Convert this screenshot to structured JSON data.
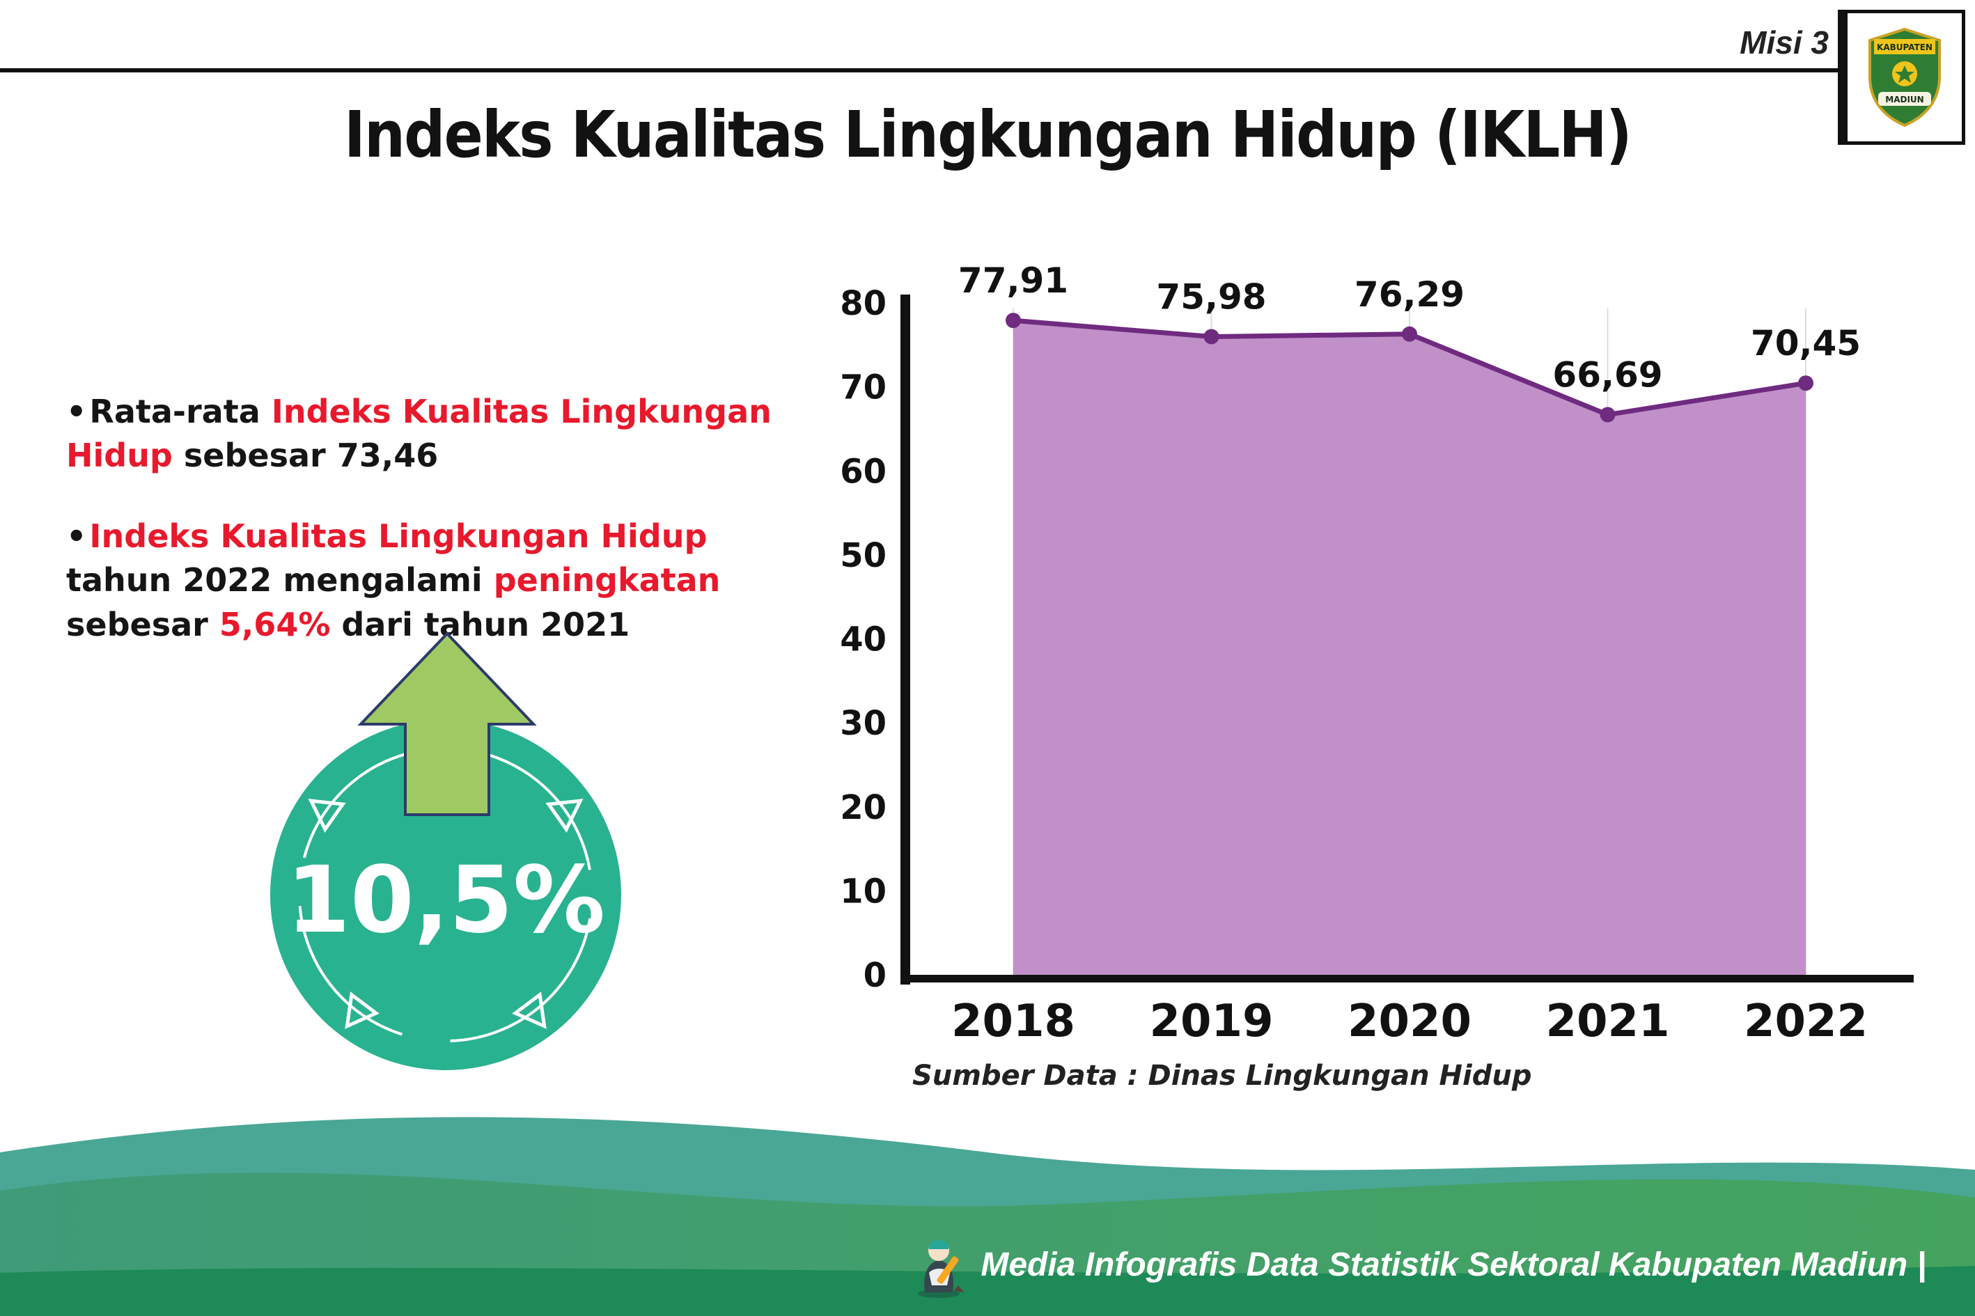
{
  "colors": {
    "accent_red": "#e8192c",
    "teal": "#29b290",
    "arrow_green": "#9fca63",
    "chart_line": "#6f2b80",
    "chart_fill": "#c190c9",
    "footer_teal": "#4aa795",
    "footer_green": "#45a35f",
    "footer_dark": "#1d8a57"
  },
  "header": {
    "misi_label": "Misi 3",
    "title": "Indeks Kualitas Lingkungan Hidup (IKLH)"
  },
  "logo": {
    "top_text": "KABUPATEN",
    "bottom_text": "MADIUN"
  },
  "bullets": [
    {
      "segments": [
        {
          "text": "Rata-rata ",
          "highlight": false
        },
        {
          "text": "Indeks Kualitas Lingkungan Hidup",
          "highlight": true
        },
        {
          "text": " sebesar 73,46",
          "highlight": false
        }
      ]
    },
    {
      "segments": [
        {
          "text": "Indeks Kualitas Lingkungan Hidup",
          "highlight": true
        },
        {
          "text": " tahun 2022 mengalami ",
          "highlight": false
        },
        {
          "text": "peningkatan",
          "highlight": true
        },
        {
          "text": " sebesar ",
          "highlight": false
        },
        {
          "text": "5,64%",
          "highlight": true
        },
        {
          "text": " dari tahun 2021",
          "highlight": false
        }
      ]
    }
  ],
  "badge": {
    "value": "10,5%"
  },
  "chart_data": {
    "type": "area",
    "title": "",
    "xlabel": "",
    "ylabel": "",
    "categories": [
      "2018",
      "2019",
      "2020",
      "2021",
      "2022"
    ],
    "values": [
      77.91,
      75.98,
      76.29,
      66.69,
      70.45
    ],
    "value_labels": [
      "77,91",
      "75,98",
      "76,29",
      "66,69",
      "70,45"
    ],
    "ylim": [
      0,
      80
    ],
    "yticks": [
      0,
      10,
      20,
      30,
      40,
      50,
      60,
      70,
      80
    ],
    "grid": "faint-vertical",
    "legend": "none",
    "line_color": "#6f2b80",
    "fill_color": "#c190c9",
    "source": "Sumber Data : Dinas Lingkungan Hidup"
  },
  "footer": {
    "caption": "Media Infografis Data Statistik Sektoral Kabupaten Madiun |"
  }
}
